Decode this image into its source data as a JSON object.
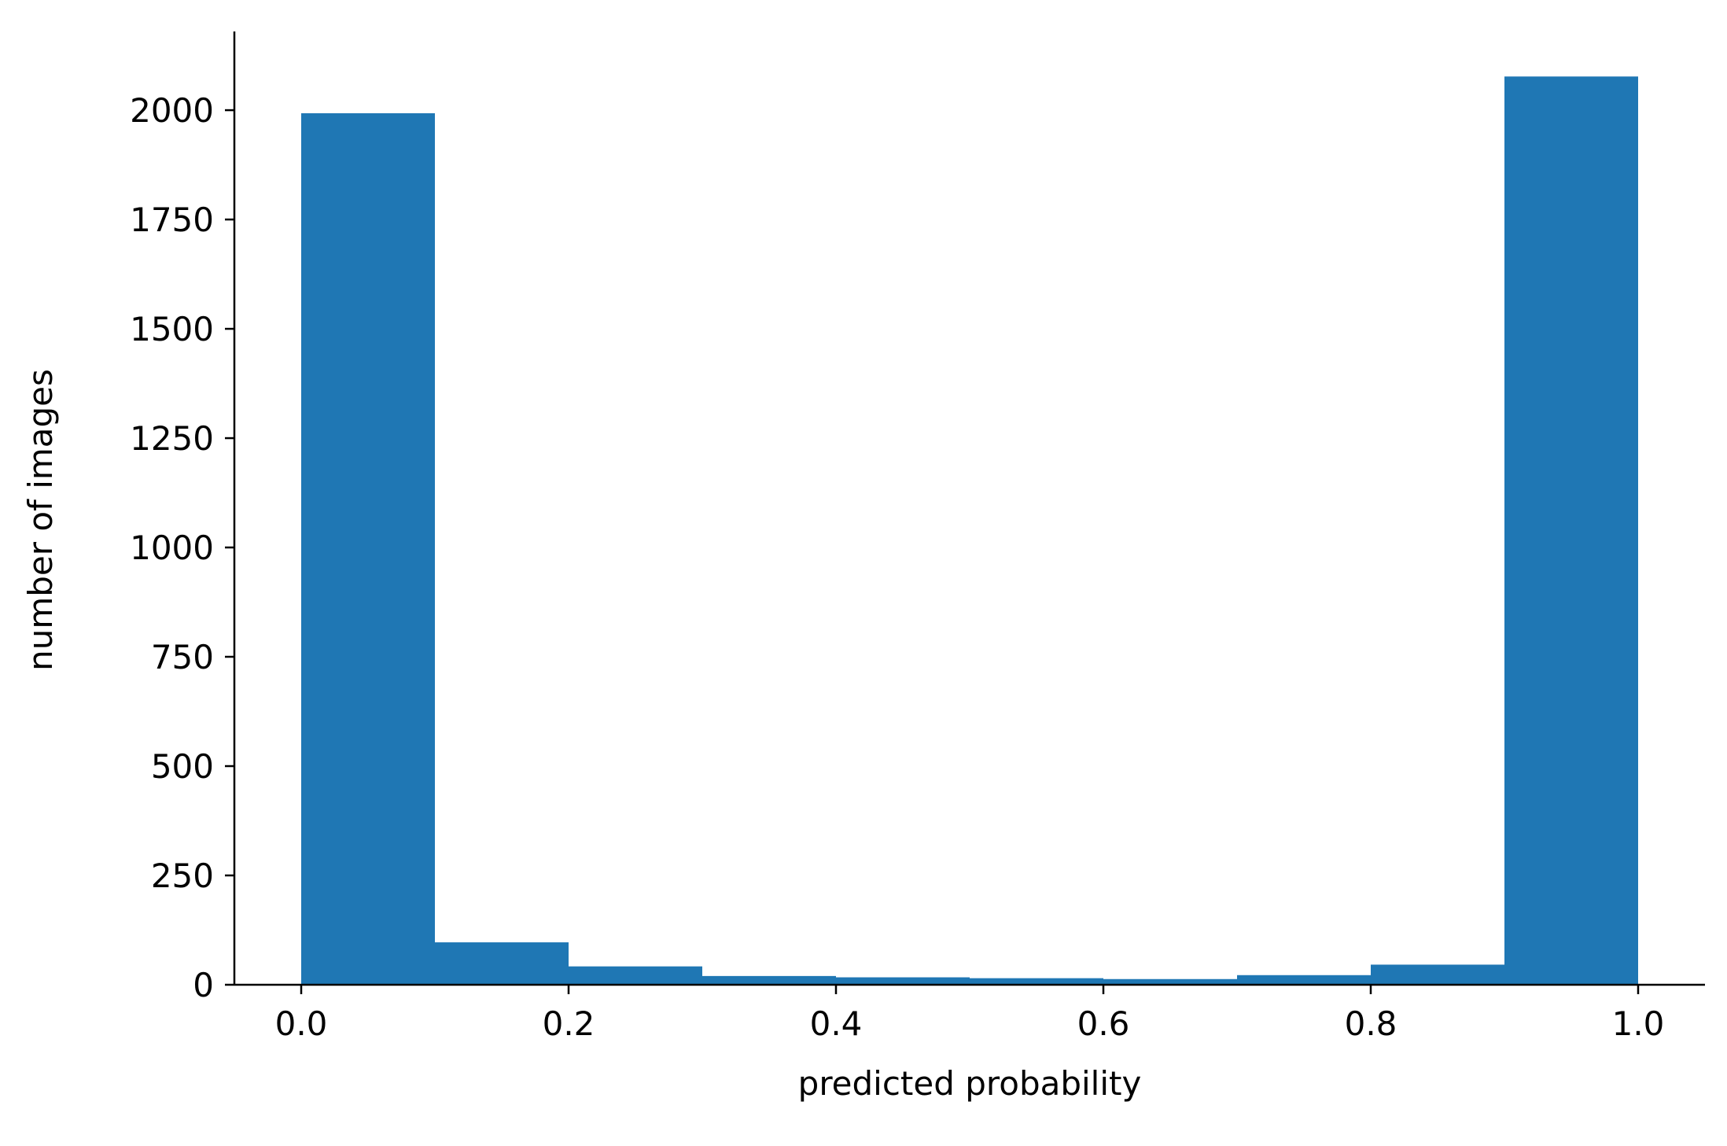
{
  "chart_data": {
    "type": "bar",
    "bins": [
      {
        "x0": 0.0,
        "x1": 0.1,
        "count": 1993
      },
      {
        "x0": 0.1,
        "x1": 0.2,
        "count": 97
      },
      {
        "x0": 0.2,
        "x1": 0.3,
        "count": 42
      },
      {
        "x0": 0.3,
        "x1": 0.4,
        "count": 20
      },
      {
        "x0": 0.4,
        "x1": 0.5,
        "count": 17
      },
      {
        "x0": 0.5,
        "x1": 0.6,
        "count": 15
      },
      {
        "x0": 0.6,
        "x1": 0.7,
        "count": 13
      },
      {
        "x0": 0.7,
        "x1": 0.8,
        "count": 22
      },
      {
        "x0": 0.8,
        "x1": 0.9,
        "count": 46
      },
      {
        "x0": 0.9,
        "x1": 1.0,
        "count": 2077
      }
    ],
    "xlabel": "predicted probability",
    "ylabel": "number of images",
    "xlim": [
      -0.05,
      1.05
    ],
    "ylim": [
      0,
      2180
    ],
    "xticks": [
      0.0,
      0.2,
      0.4,
      0.6,
      0.8,
      1.0
    ],
    "xtick_labels": [
      "0.0",
      "0.2",
      "0.4",
      "0.6",
      "0.8",
      "1.0"
    ],
    "yticks": [
      0,
      250,
      500,
      750,
      1000,
      1250,
      1500,
      1750,
      2000
    ],
    "ytick_labels": [
      "0",
      "250",
      "500",
      "750",
      "1000",
      "1250",
      "1500",
      "1750",
      "2000"
    ],
    "bar_color": "#1f77b4",
    "grid": false,
    "spines": [
      "left",
      "bottom"
    ]
  }
}
